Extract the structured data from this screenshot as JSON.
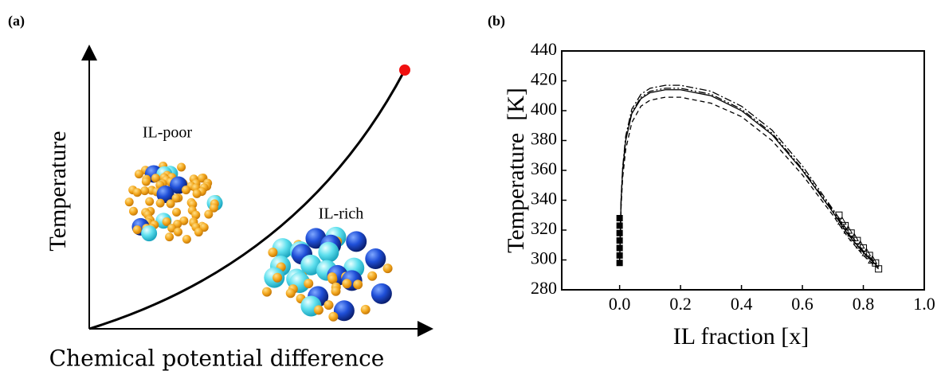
{
  "schematic": {
    "panel_label": "(a)",
    "y_label": "Temperature",
    "x_label": "Chemical potential difference",
    "annotations": [
      "IL-poor",
      "IL-rich"
    ]
  },
  "chart_data": {
    "type": "line",
    "panel_label": "(b)",
    "x_label": "IL fraction [x]",
    "y_label": "Temperature  [K]",
    "xlim": [
      -0.19,
      1.0
    ],
    "ylim": [
      280,
      440
    ],
    "xticks": [
      {
        "value": 0,
        "label": "0.0"
      },
      0.2,
      0.4,
      0.6,
      0.8,
      {
        "value": 1,
        "label": "1.0"
      }
    ],
    "yticks": [
      280,
      300,
      320,
      340,
      360,
      380,
      400,
      420,
      440
    ],
    "series": [
      {
        "color": "#000000",
        "style": "solid",
        "x": [
          0.0,
          0.005,
          0.01,
          0.02,
          0.04,
          0.07,
          0.1,
          0.15,
          0.2,
          0.3,
          0.4,
          0.5,
          0.6,
          0.7,
          0.75,
          0.8,
          0.85
        ],
        "values": [
          298,
          340,
          360,
          380,
          398,
          408,
          412,
          414,
          414,
          410,
          400,
          384,
          360,
          332,
          317,
          305,
          295
        ]
      },
      {
        "color": "#000000",
        "style": "dashdot",
        "x": [
          0.0,
          0.005,
          0.01,
          0.02,
          0.04,
          0.07,
          0.1,
          0.15,
          0.2,
          0.3,
          0.4,
          0.5,
          0.6,
          0.7,
          0.75,
          0.8,
          0.85
        ],
        "values": [
          300,
          342,
          362,
          383,
          401,
          411,
          415,
          417,
          417,
          413,
          403,
          387,
          363,
          334,
          319,
          306,
          296
        ]
      },
      {
        "color": "#000000",
        "style": "dashdotdot",
        "x": [
          0.0,
          0.005,
          0.01,
          0.02,
          0.04,
          0.07,
          0.1,
          0.15,
          0.2,
          0.3,
          0.4,
          0.5,
          0.6,
          0.7,
          0.75,
          0.8,
          0.85
        ],
        "values": [
          299,
          341,
          361,
          381,
          399,
          409,
          413,
          415,
          415,
          411,
          401,
          385,
          361,
          333,
          318,
          305,
          295
        ]
      },
      {
        "color": "#000000",
        "style": "dashed",
        "x": [
          0.0,
          0.005,
          0.01,
          0.02,
          0.04,
          0.07,
          0.1,
          0.15,
          0.2,
          0.3,
          0.4,
          0.5,
          0.6,
          0.7,
          0.75,
          0.8,
          0.85
        ],
        "values": [
          297,
          336,
          355,
          374,
          392,
          403,
          407,
          409,
          409,
          405,
          396,
          380,
          357,
          330,
          315,
          303,
          294
        ]
      },
      {
        "color": "#000000",
        "style": "filled-square",
        "x": [
          0,
          0,
          0,
          0,
          0,
          0,
          0
        ],
        "values": [
          298,
          303,
          308,
          313,
          318,
          323,
          328
        ]
      },
      {
        "color": "#000000",
        "style": "open-square",
        "x": [
          0.72,
          0.74,
          0.76,
          0.78,
          0.8,
          0.82,
          0.84,
          0.85
        ],
        "values": [
          330,
          323,
          318,
          313,
          308,
          303,
          298,
          294
        ]
      },
      {
        "color": "#000000",
        "style": "open-triangle",
        "x": [
          0.73,
          0.75,
          0.77,
          0.79,
          0.81,
          0.83
        ],
        "values": [
          326,
          320,
          315,
          310,
          305,
          300
        ]
      }
    ]
  }
}
